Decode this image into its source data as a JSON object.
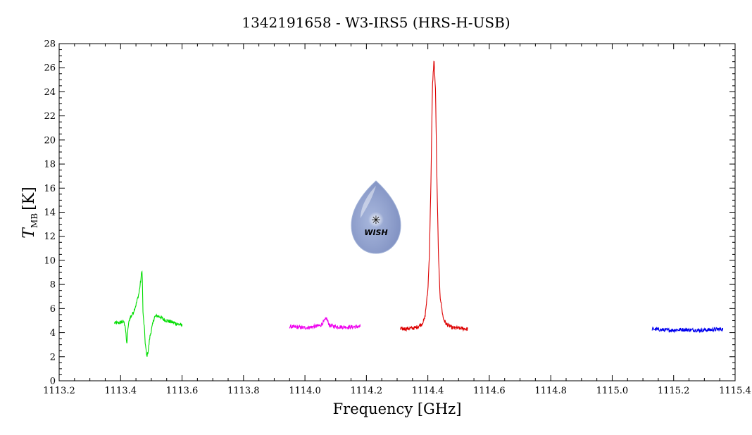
{
  "chart_data": {
    "type": "line",
    "title": "1342191658 - W3-IRS5 (HRS-H-USB)",
    "xlabel": "Frequency [GHz]",
    "ylabel": {
      "symbol": "T",
      "subscript": "MB",
      "unit": "[K]"
    },
    "xlim": [
      1113.2,
      1115.4
    ],
    "ylim": [
      0,
      28
    ],
    "x_ticks": [
      "1113.2",
      "1113.4",
      "1113.6",
      "1113.8",
      "1114.0",
      "1114.2",
      "1114.4",
      "1114.6",
      "1114.8",
      "1115.0",
      "1115.2",
      "1115.4"
    ],
    "y_ticks": [
      "0",
      "2",
      "4",
      "6",
      "8",
      "10",
      "12",
      "14",
      "16",
      "18",
      "20",
      "22",
      "24",
      "26",
      "28"
    ],
    "grid": false,
    "series": [
      {
        "color": "#00dd00",
        "points": [
          [
            1113.38,
            4.8
          ],
          [
            1113.39,
            4.8
          ],
          [
            1113.4,
            4.85
          ],
          [
            1113.41,
            4.9
          ],
          [
            1113.415,
            4.6
          ],
          [
            1113.42,
            3.0
          ],
          [
            1113.425,
            4.6
          ],
          [
            1113.43,
            5.2
          ],
          [
            1113.44,
            5.6
          ],
          [
            1113.45,
            6.3
          ],
          [
            1113.46,
            7.3
          ],
          [
            1113.465,
            8.2
          ],
          [
            1113.47,
            9.3
          ],
          [
            1113.473,
            5.5
          ],
          [
            1113.477,
            4.5
          ],
          [
            1113.48,
            3.2
          ],
          [
            1113.485,
            2.0
          ],
          [
            1113.49,
            2.5
          ],
          [
            1113.495,
            3.6
          ],
          [
            1113.5,
            4.2
          ],
          [
            1113.51,
            5.3
          ],
          [
            1113.52,
            5.4
          ],
          [
            1113.53,
            5.3
          ],
          [
            1113.54,
            5.1
          ],
          [
            1113.55,
            5.0
          ],
          [
            1113.57,
            4.85
          ],
          [
            1113.6,
            4.6
          ]
        ]
      },
      {
        "color": "#ee00ee",
        "points": [
          [
            1113.95,
            4.5
          ],
          [
            1114.0,
            4.4
          ],
          [
            1114.03,
            4.5
          ],
          [
            1114.05,
            4.6
          ],
          [
            1114.065,
            5.0
          ],
          [
            1114.07,
            5.2
          ],
          [
            1114.08,
            4.6
          ],
          [
            1114.1,
            4.5
          ],
          [
            1114.14,
            4.45
          ],
          [
            1114.18,
            4.5
          ]
        ]
      },
      {
        "color": "#dd0000",
        "points": [
          [
            1114.31,
            4.3
          ],
          [
            1114.34,
            4.35
          ],
          [
            1114.36,
            4.4
          ],
          [
            1114.38,
            4.7
          ],
          [
            1114.39,
            5.2
          ],
          [
            1114.4,
            7.5
          ],
          [
            1114.405,
            10.5
          ],
          [
            1114.41,
            16.5
          ],
          [
            1114.415,
            24.5
          ],
          [
            1114.42,
            26.7
          ],
          [
            1114.425,
            24.0
          ],
          [
            1114.43,
            16.0
          ],
          [
            1114.435,
            10.0
          ],
          [
            1114.44,
            7.0
          ],
          [
            1114.45,
            5.2
          ],
          [
            1114.46,
            4.7
          ],
          [
            1114.48,
            4.4
          ],
          [
            1114.51,
            4.35
          ],
          [
            1114.53,
            4.3
          ]
        ]
      },
      {
        "color": "#0000ee",
        "points": [
          [
            1115.13,
            4.3
          ],
          [
            1115.18,
            4.2
          ],
          [
            1115.23,
            4.25
          ],
          [
            1115.28,
            4.2
          ],
          [
            1115.33,
            4.25
          ],
          [
            1115.36,
            4.3
          ]
        ]
      }
    ]
  },
  "logo": {
    "text": "WISH",
    "colors": {
      "drop": "#a9b8dd",
      "drop_dark": "#7d8ec0",
      "star": "#ffe94a",
      "text": "#f7e86a"
    }
  }
}
